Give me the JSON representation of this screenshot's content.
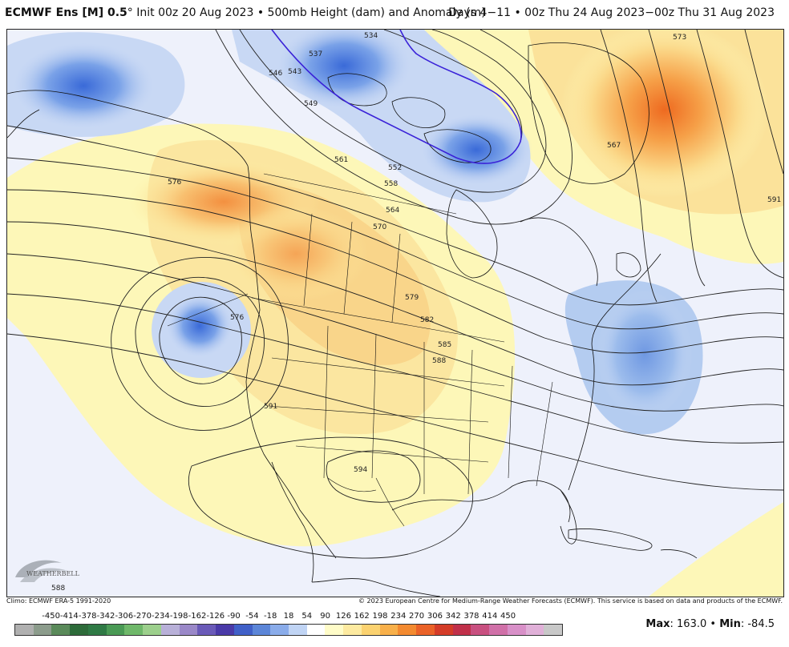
{
  "header": {
    "model": "ECMWF Ens [M] 0.5",
    "degree_symbol": "°",
    "init": "Init 00z 20 Aug 2023",
    "bullet": "•",
    "field": "500mb Height (dam) and Anomaly (m)",
    "days": "Days 4−11 • 00z Thu 24 Aug 2023−00z Thu 31 Aug 2023"
  },
  "credits": {
    "climo": "Climo: ECMWF ERA-5 1991-2020",
    "copyright": "© 2023 European Centre for Medium-Range Weather Forecasts (ECMWF). This service is based on data and products of the ECMWF."
  },
  "logo": {
    "text": "WEATHERBELL",
    "icon": "weatherbell-logo-icon"
  },
  "colorbar": {
    "labels": [
      "-450",
      "-414",
      "-378",
      "-342",
      "-306",
      "-270",
      "-234",
      "-198",
      "-162",
      "-126",
      "-90",
      "-54",
      "-18",
      "18",
      "54",
      "90",
      "126",
      "162",
      "198",
      "234",
      "270",
      "306",
      "342",
      "378",
      "414",
      "450"
    ],
    "colors": [
      "#b0b0b0",
      "#8c9c8c",
      "#5a8a5a",
      "#2d6b3a",
      "#2f7a45",
      "#4a9a55",
      "#6fb86a",
      "#9ccf8c",
      "#b8b0d8",
      "#9a88c8",
      "#6a5ab8",
      "#4a3aa8",
      "#4060c8",
      "#5c86d8",
      "#8aacea",
      "#c0d4f4",
      "#ffffff",
      "#fffcc8",
      "#fdeaa0",
      "#fbd270",
      "#f8b04a",
      "#f38a30",
      "#ea6228",
      "#d43c28",
      "#c0304a",
      "#c85080",
      "#d070a8",
      "#d890c8",
      "#e0b0d8",
      "#c8c8c8"
    ]
  },
  "maxmin": {
    "max_label": "Max",
    "max_value": "163.0",
    "min_label": "Min",
    "min_value": "-84.5"
  },
  "contour_labels": [
    "534",
    "537",
    "543",
    "546",
    "549",
    "552",
    "558",
    "561",
    "564",
    "567",
    "570",
    "573",
    "576",
    "579",
    "582",
    "585",
    "588",
    "591",
    "594"
  ],
  "map": {
    "icons": [
      "north-america-map-icon"
    ],
    "colors": {
      "ocean": "#eef1fb",
      "positive_light": "#fdf7b8",
      "positive_mid": "#fbd98a",
      "positive_strong": "#f08a3a",
      "negative_light": "#c8d8f4",
      "negative_mid": "#8aaee8",
      "negative_strong": "#4a7ad8",
      "contour": "#222222",
      "contour_540": "#3a22d8"
    }
  }
}
